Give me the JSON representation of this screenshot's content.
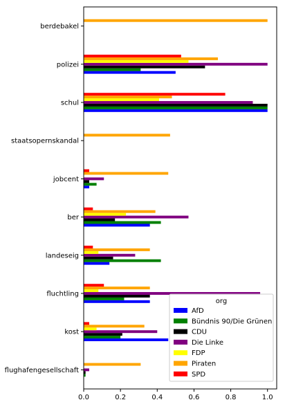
{
  "chart_data": {
    "type": "bar",
    "orientation": "horizontal",
    "categories": [
      "berdebakel",
      "polizei",
      "schul",
      "staatsopernskandal",
      "jobcent",
      "ber",
      "landeseig",
      "fluchtling",
      "kost",
      "flughafengesellschaft"
    ],
    "series": [
      {
        "name": "AfD",
        "color": "#0000ff",
        "values": [
          0,
          0.5,
          1.0,
          0,
          0.03,
          0.36,
          0.14,
          0.36,
          0.46,
          0
        ]
      },
      {
        "name": "Bündnis 90/Die Grünen",
        "color": "#008000",
        "values": [
          0,
          0.31,
          1.0,
          0,
          0.07,
          0.42,
          0.42,
          0.22,
          0.2,
          0.01
        ]
      },
      {
        "name": "CDU",
        "color": "#000000",
        "values": [
          0,
          0.66,
          1.0,
          0,
          0.03,
          0.17,
          0.16,
          0.36,
          0.21,
          0.01
        ]
      },
      {
        "name": "Die Linke",
        "color": "#800080",
        "values": [
          0,
          1.0,
          0.92,
          0,
          0.11,
          0.57,
          0.28,
          0.96,
          0.4,
          0.03
        ]
      },
      {
        "name": "FDP",
        "color": "#ffff00",
        "values": [
          0,
          0.57,
          0.41,
          0,
          0,
          0.23,
          0.08,
          0.08,
          0.07,
          0
        ]
      },
      {
        "name": "Piraten",
        "color": "#ffa500",
        "values": [
          1.0,
          0.73,
          0.48,
          0.47,
          0.46,
          0.39,
          0.36,
          0.36,
          0.33,
          0.31
        ]
      },
      {
        "name": "SPD",
        "color": "#ff0000",
        "values": [
          0,
          0.53,
          0.77,
          0,
          0.03,
          0.05,
          0.05,
          0.11,
          0.03,
          0
        ]
      }
    ],
    "xlim": [
      0,
      1.05
    ],
    "xticks": [
      "0.0",
      "0.2",
      "0.4",
      "0.6",
      "0.8",
      "1.0"
    ],
    "legend": {
      "title": "org",
      "placement": "lower-right"
    },
    "grid": false
  }
}
